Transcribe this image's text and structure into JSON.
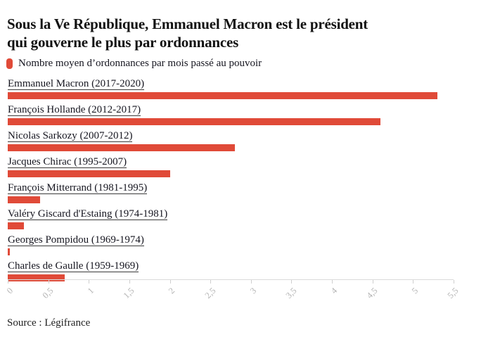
{
  "header": {
    "title_line1": "Sous la Ve République, Emmanuel Macron est le président",
    "title_line2": "qui gouverne le plus par ordonnances"
  },
  "legend": {
    "label": "Nombre moyen d’ordonnances par mois passé au pouvoir",
    "marker_color": "#e04a38"
  },
  "chart_data": {
    "type": "bar",
    "orientation": "horizontal",
    "title": "Sous la Ve République, Emmanuel Macron est le président qui gouverne le plus par ordonnances",
    "series_label": "Nombre moyen d’ordonnances par mois passé au pouvoir",
    "categories": [
      "Emmanuel Macron (2017-2020)",
      "François Hollande (2012-2017)",
      "Nicolas Sarkozy (2007-2012)",
      "Jacques Chirac (1995-2007)",
      "François Mitterrand (1981-1995)",
      "Valéry Giscard d'Estaing (1974-1981)",
      "Georges Pompidou (1969-1974)",
      "Charles de Gaulle (1959-1969)"
    ],
    "values": [
      5.3,
      4.6,
      2.8,
      2.0,
      0.4,
      0.2,
      0.03,
      0.7
    ],
    "xlim": [
      0,
      5.5
    ],
    "x_ticks": [
      {
        "label": "0",
        "value": 0
      },
      {
        "label": "0,5",
        "value": 0.5
      },
      {
        "label": "1",
        "value": 1
      },
      {
        "label": "1,5",
        "value": 1.5
      },
      {
        "label": "2",
        "value": 2
      },
      {
        "label": "2,5",
        "value": 2.5
      },
      {
        "label": "3",
        "value": 3
      },
      {
        "label": "3,5",
        "value": 3.5
      },
      {
        "label": "4",
        "value": 4
      },
      {
        "label": "4,5",
        "value": 4.5
      },
      {
        "label": "5",
        "value": 5
      },
      {
        "label": "5,5",
        "value": 5.5
      }
    ],
    "bar_color": "#e04a38",
    "grid": false,
    "legend_position": "top-left"
  },
  "footer": {
    "source": "Source : Légifrance"
  }
}
